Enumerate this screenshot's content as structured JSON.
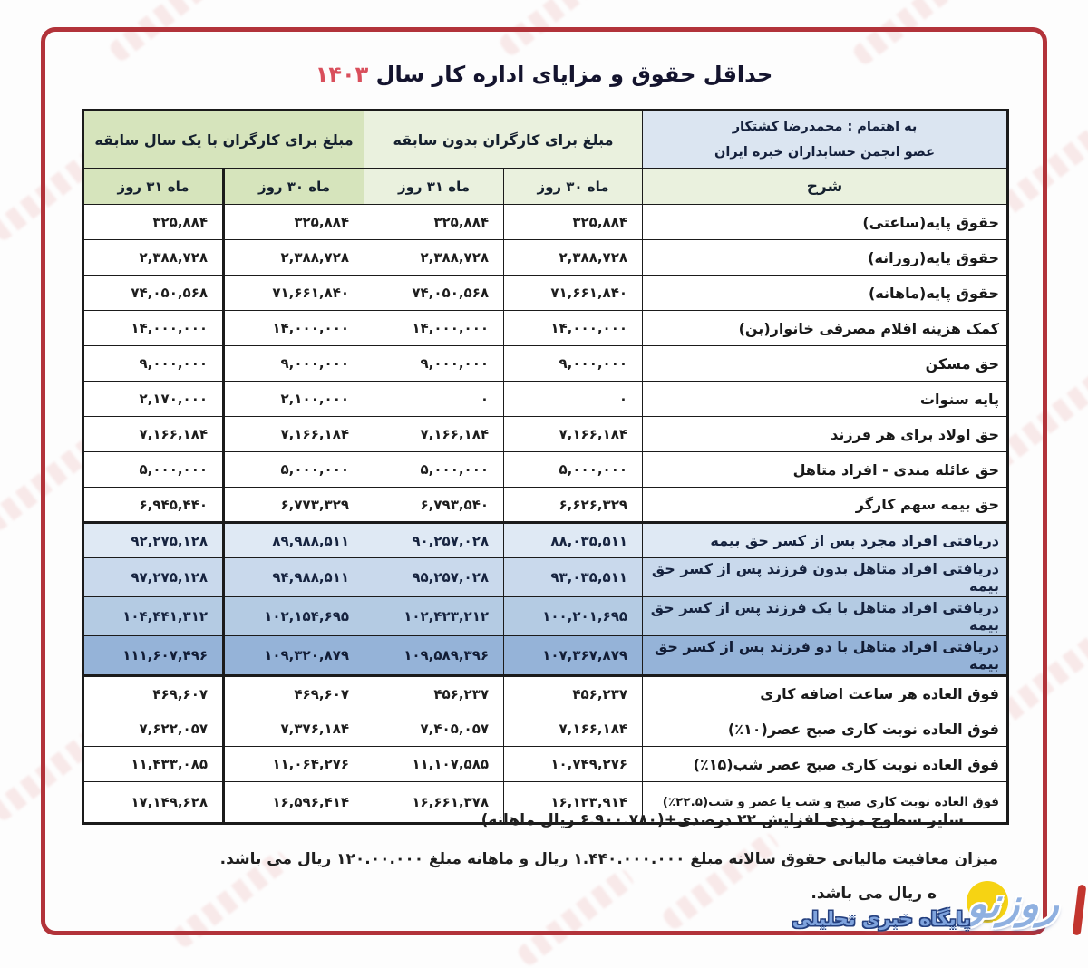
{
  "title": {
    "text": "حداقل حقوق و مزایای اداره کار سال",
    "year": "۱۴۰۳"
  },
  "credit": {
    "line1": "به اهتمام : محمدرضا کشتکار",
    "line2": "عضو انجمن حسابداران خبره ایران"
  },
  "table": {
    "desc_header": "شرح",
    "groups": [
      {
        "label": "مبلغ برای کارگران بدون سابقه",
        "sub": [
          "ماه ۳۰ روز",
          "ماه ۳۱ روز"
        ]
      },
      {
        "label": "مبلغ برای کارگران با یک سال سابقه",
        "sub": [
          "ماه ۳۰ روز",
          "ماه ۳۱ روز"
        ]
      }
    ],
    "rows": [
      {
        "label": "حقوق پایه(ساعتی)",
        "values": [
          "۳۲۵,۸۸۴",
          "۳۲۵,۸۸۴",
          "۳۲۵,۸۸۴",
          "۳۲۵,۸۸۴"
        ],
        "band": ""
      },
      {
        "label": "حقوق پایه(روزانه)",
        "values": [
          "۲,۳۸۸,۷۲۸",
          "۲,۳۸۸,۷۲۸",
          "۲,۳۸۸,۷۲۸",
          "۲,۳۸۸,۷۲۸"
        ],
        "band": ""
      },
      {
        "label": "حقوق پایه(ماهانه)",
        "values": [
          "۷۱,۶۶۱,۸۴۰",
          "۷۴,۰۵۰,۵۶۸",
          "۷۱,۶۶۱,۸۴۰",
          "۷۴,۰۵۰,۵۶۸"
        ],
        "band": ""
      },
      {
        "label": "کمک هزینه اقلام مصرفی خانوار(بن)",
        "values": [
          "۱۴,۰۰۰,۰۰۰",
          "۱۴,۰۰۰,۰۰۰",
          "۱۴,۰۰۰,۰۰۰",
          "۱۴,۰۰۰,۰۰۰"
        ],
        "band": ""
      },
      {
        "label": "حق مسکن",
        "values": [
          "۹,۰۰۰,۰۰۰",
          "۹,۰۰۰,۰۰۰",
          "۹,۰۰۰,۰۰۰",
          "۹,۰۰۰,۰۰۰"
        ],
        "band": ""
      },
      {
        "label": "پایه سنوات",
        "values": [
          "۰",
          "۰",
          "۲,۱۰۰,۰۰۰",
          "۲,۱۷۰,۰۰۰"
        ],
        "band": ""
      },
      {
        "label": "حق اولاد برای هر فرزند",
        "values": [
          "۷,۱۶۶,۱۸۴",
          "۷,۱۶۶,۱۸۴",
          "۷,۱۶۶,۱۸۴",
          "۷,۱۶۶,۱۸۴"
        ],
        "band": ""
      },
      {
        "label": "حق عائله مندی - افراد متاهل",
        "values": [
          "۵,۰۰۰,۰۰۰",
          "۵,۰۰۰,۰۰۰",
          "۵,۰۰۰,۰۰۰",
          "۵,۰۰۰,۰۰۰"
        ],
        "band": ""
      },
      {
        "label": "حق بیمه سهم کارگر",
        "values": [
          "۶,۶۲۶,۳۲۹",
          "۶,۷۹۳,۵۴۰",
          "۶,۷۷۳,۳۲۹",
          "۶,۹۴۵,۴۴۰"
        ],
        "band": ""
      },
      {
        "label": "دریافتی افراد مجرد پس از کسر حق بیمه",
        "values": [
          "۸۸,۰۳۵,۵۱۱",
          "۹۰,۲۵۷,۰۲۸",
          "۸۹,۹۸۸,۵۱۱",
          "۹۲,۲۷۵,۱۲۸"
        ],
        "band": "blue1"
      },
      {
        "label": "دریافتی افراد متاهل بدون فرزند پس از کسر حق بیمه",
        "values": [
          "۹۳,۰۳۵,۵۱۱",
          "۹۵,۲۵۷,۰۲۸",
          "۹۴,۹۸۸,۵۱۱",
          "۹۷,۲۷۵,۱۲۸"
        ],
        "band": "blue2"
      },
      {
        "label": "دریافتی افراد متاهل با یک فرزند پس از کسر حق بیمه",
        "values": [
          "۱۰۰,۲۰۱,۶۹۵",
          "۱۰۲,۴۲۳,۲۱۲",
          "۱۰۲,۱۵۴,۶۹۵",
          "۱۰۴,۴۴۱,۳۱۲"
        ],
        "band": "blue3"
      },
      {
        "label": "دریافتی افراد متاهل با دو فرزند پس از کسر حق بیمه",
        "values": [
          "۱۰۷,۳۶۷,۸۷۹",
          "۱۰۹,۵۸۹,۳۹۶",
          "۱۰۹,۳۲۰,۸۷۹",
          "۱۱۱,۶۰۷,۴۹۶"
        ],
        "band": "blue4"
      },
      {
        "label": "فوق العاده هر ساعت اضافه کاری",
        "values": [
          "۴۵۶,۲۳۷",
          "۴۵۶,۲۳۷",
          "۴۶۹,۶۰۷",
          "۴۶۹,۶۰۷"
        ],
        "band": ""
      },
      {
        "label": "فوق العاده نوبت کاری صبح عصر(۱۰٪)",
        "values": [
          "۷,۱۶۶,۱۸۴",
          "۷,۴۰۵,۰۵۷",
          "۷,۳۷۶,۱۸۴",
          "۷,۶۲۲,۰۵۷"
        ],
        "band": ""
      },
      {
        "label": "فوق العاده نوبت کاری صبح عصر شب(۱۵٪)",
        "values": [
          "۱۰,۷۴۹,۲۷۶",
          "۱۱,۱۰۷,۵۸۵",
          "۱۱,۰۶۴,۲۷۶",
          "۱۱,۴۳۳,۰۸۵"
        ],
        "band": ""
      },
      {
        "label": "فوق العاده نوبت کاری صبح و شب یا عصر و شب(۲۲.۵٪)",
        "values": [
          "۱۶,۱۲۳,۹۱۴",
          "۱۶,۶۶۱,۳۷۸",
          "۱۶,۵۹۶,۴۱۴",
          "۱۷,۱۴۹,۶۲۸"
        ],
        "band": "",
        "small": true
      }
    ]
  },
  "notes": [
    "سایر سطوح مزدی افزایش ۲۲ درصدی+(۶.۹۰۰.۷۸۰ ریال ماهانه)",
    "میزان معافیت مالیاتی حقوق سالانه مبلغ ۱.۴۴۰.۰۰۰.۰۰۰ ریال و ماهانه مبلغ ۱۲۰.۰۰.۰۰۰ ریال می باشد.",
    "ه ریال می باشد."
  ],
  "logo": {
    "brand": "روزنو",
    "tagline": "پایگاه خبری تحلیلی"
  },
  "colors": {
    "frame_border": "#b2333a",
    "year_red": "#d94f5c",
    "header_green_light": "#eaf1de",
    "header_green": "#d6e4bc",
    "credit_blue": "#dbe5f1",
    "band_blue1": "#dfe9f4",
    "band_blue2": "#c9d9ec",
    "band_blue3": "#b4cbe3",
    "band_blue4": "#95b3d8"
  }
}
